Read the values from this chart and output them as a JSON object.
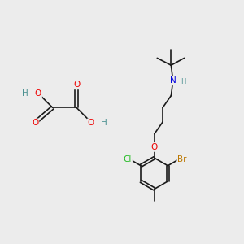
{
  "bg_color": "#ececec",
  "bond_color": "#1a1a1a",
  "bond_width": 1.2,
  "atom_colors": {
    "C": "#1a1a1a",
    "H": "#4a9090",
    "O": "#ee0000",
    "N": "#0000dd",
    "Cl": "#22bb22",
    "Br": "#bb7700"
  },
  "font_size_atom": 7.5,
  "font_size_small": 6.0
}
